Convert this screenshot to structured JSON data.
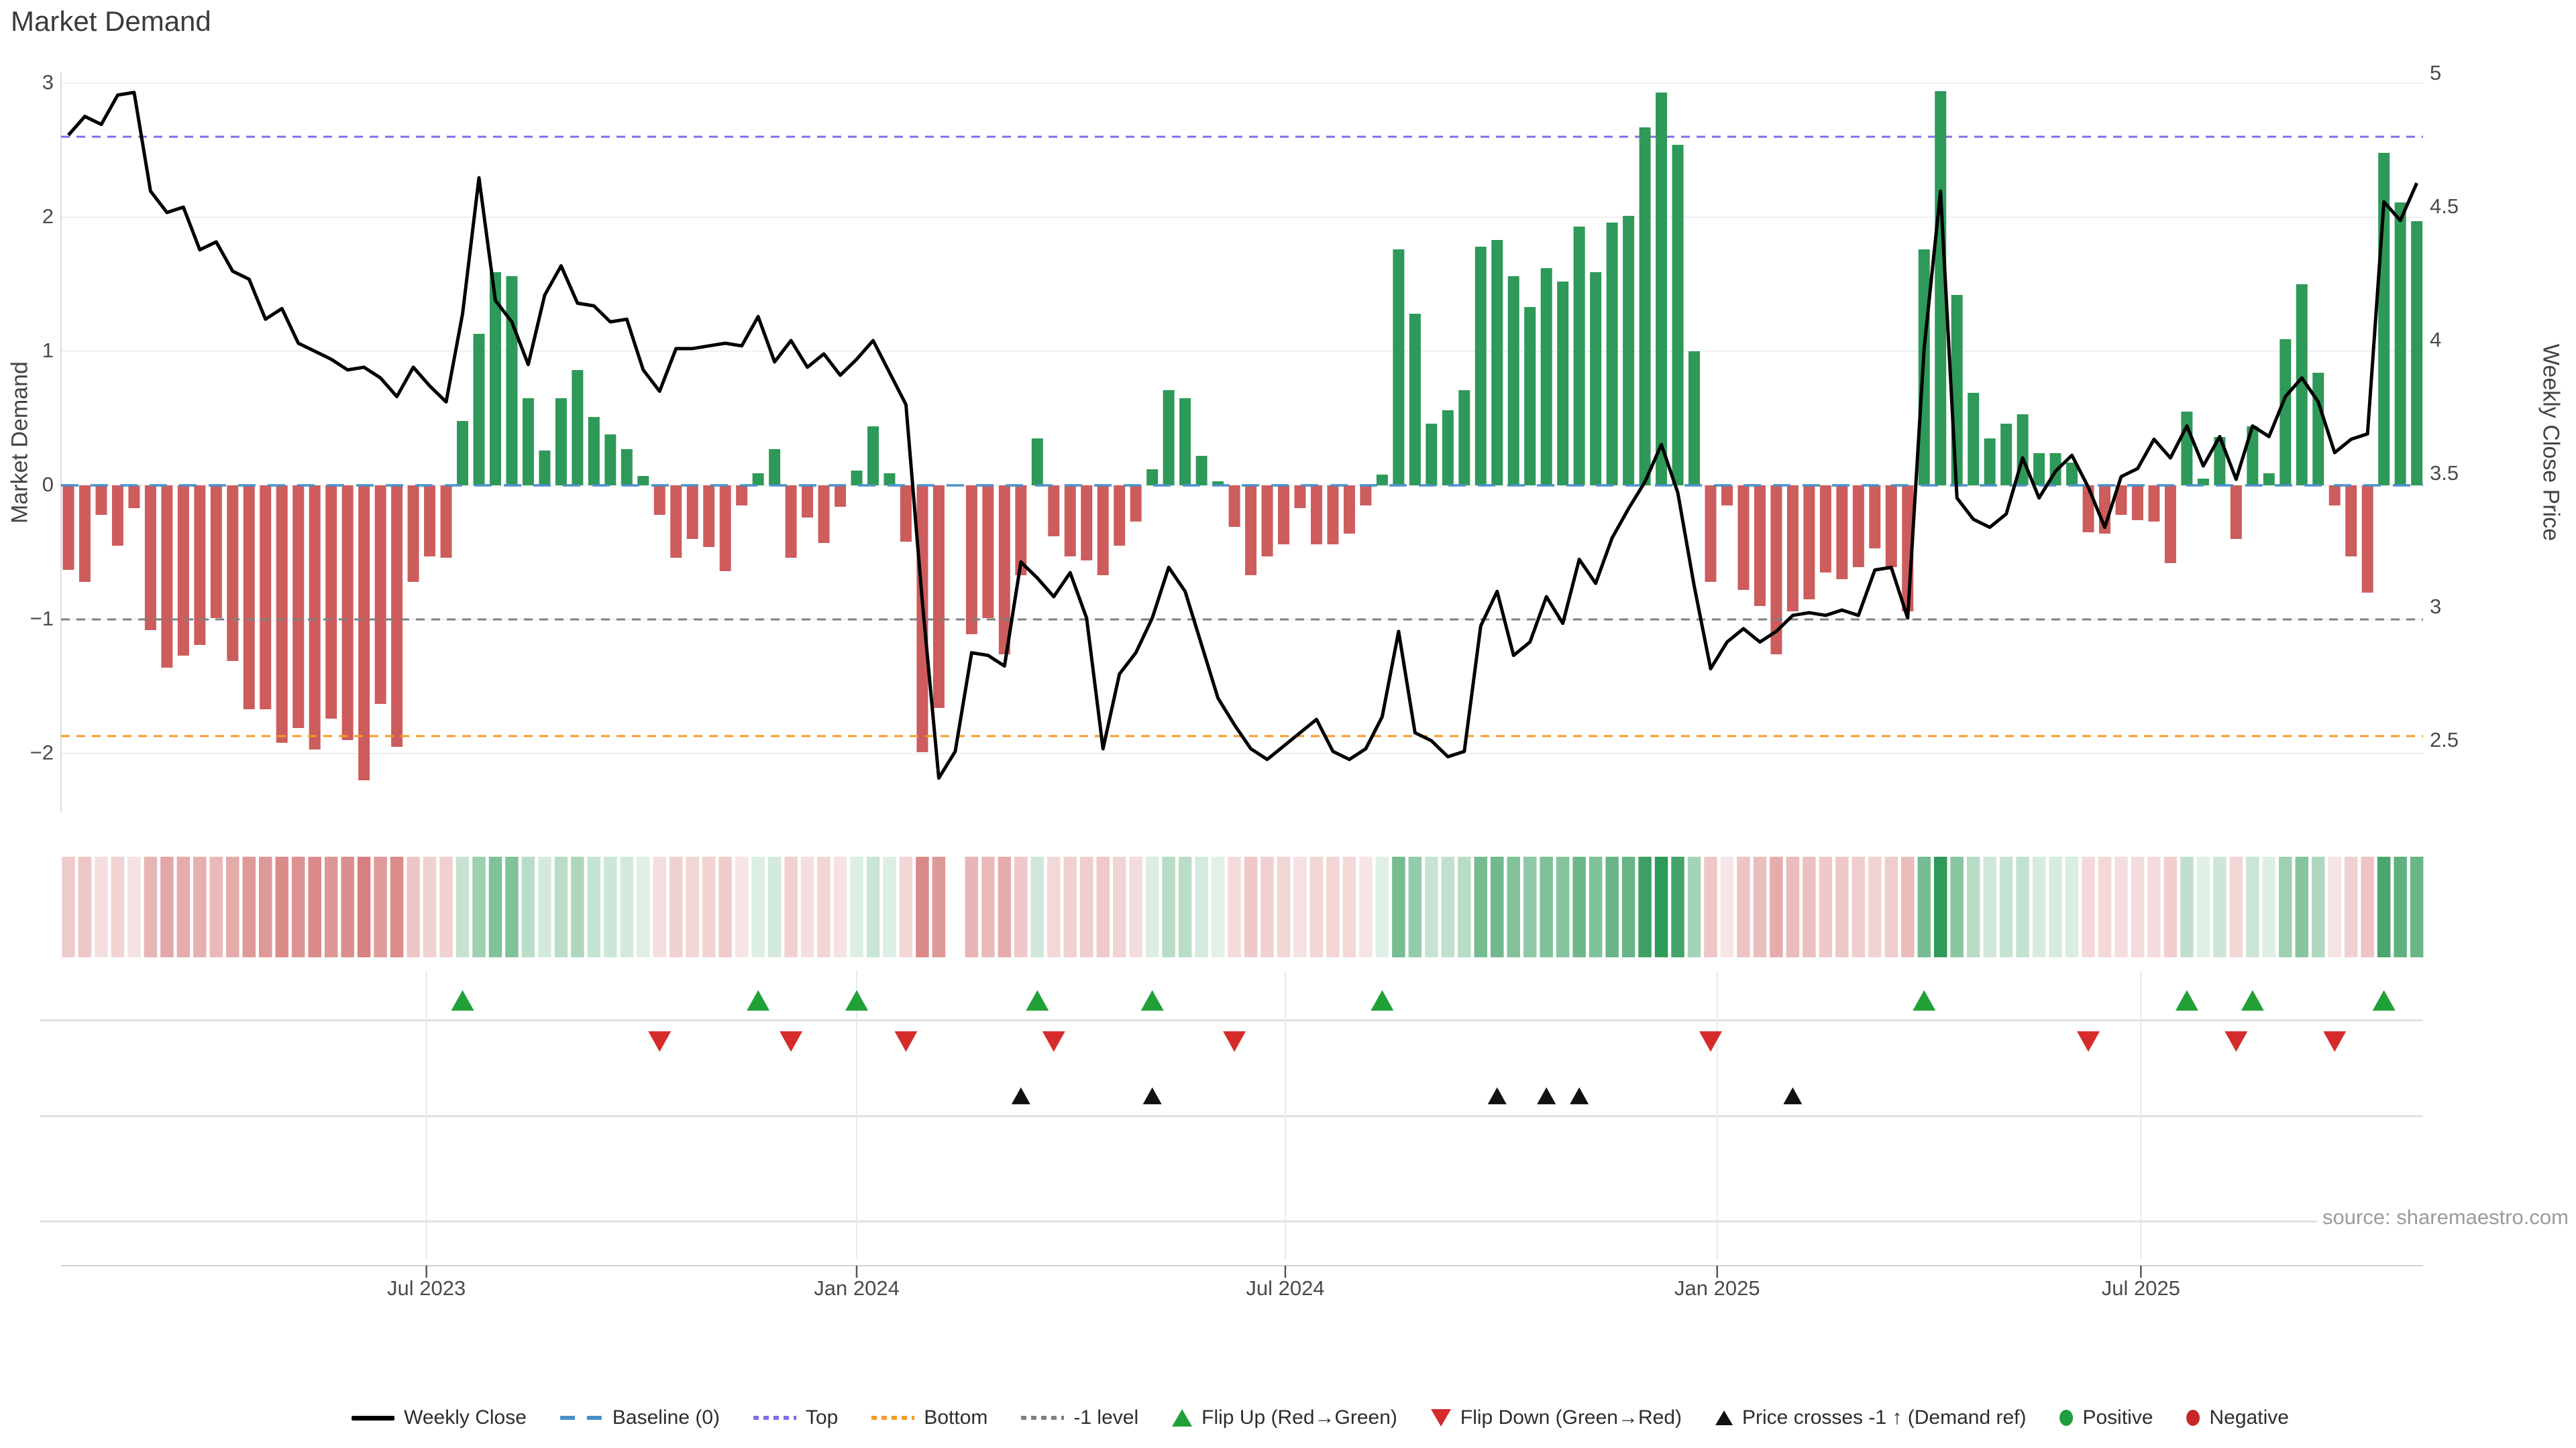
{
  "title": "Market Demand",
  "source": "source: sharemaestro.com",
  "legend": {
    "items": [
      {
        "label": "Weekly Close",
        "swatch": "sw-line",
        "icon": "black-line-icon"
      },
      {
        "label": "Baseline (0)",
        "swatch": "sw-dash-blue",
        "icon": "blue-dash-icon"
      },
      {
        "label": "Top",
        "swatch": "sw-dot-purple",
        "icon": "purple-dotted-icon"
      },
      {
        "label": "Bottom",
        "swatch": "sw-dot-orange",
        "icon": "orange-dotted-icon"
      },
      {
        "label": "-1 level",
        "swatch": "sw-dot-gray",
        "icon": "gray-dotted-icon"
      },
      {
        "label": "Flip Up (Red→Green)",
        "swatch": "sw-tri-up-green",
        "icon": "green-up-triangle-icon"
      },
      {
        "label": "Flip Down (Green→Red)",
        "swatch": "sw-tri-down-red",
        "icon": "red-down-triangle-icon"
      },
      {
        "label": "Price crosses -1 ↑ (Demand ref)",
        "swatch": "sw-tri-up-black",
        "icon": "black-up-triangle-icon"
      },
      {
        "label": "Positive",
        "swatch": "sw-dot-pos",
        "icon": "green-dot-icon"
      },
      {
        "label": "Negative",
        "swatch": "sw-dot-neg",
        "icon": "red-dot-icon"
      }
    ]
  },
  "chart_data": {
    "type": "bar+line",
    "title": "Market Demand",
    "subtitle": "",
    "grid": "horizontal-only",
    "legend_position": "bottom-center",
    "x_axis": {
      "unit": "weekly",
      "tick_labels": [
        "Jul 2023",
        "Jan 2024",
        "Jul 2024",
        "Jan 2025",
        "Jul 2025"
      ],
      "tick_week_index": [
        21.8,
        48.0,
        74.1,
        100.4,
        126.2
      ]
    },
    "left_axis": {
      "label": "Market Demand",
      "tick_labels": [
        "3",
        "2",
        "1",
        "0",
        "−1",
        "−2"
      ],
      "tick_values": [
        3,
        2,
        1,
        0,
        -1,
        -2
      ],
      "range": [
        -2.45,
        3.07
      ]
    },
    "right_axis": {
      "label": "Weekly Close Price",
      "tick_labels": [
        "5",
        "4.5",
        "4",
        "3.5",
        "3",
        "2.5"
      ],
      "tick_values": [
        5,
        4.5,
        4,
        3.5,
        3,
        2.5
      ],
      "range": [
        2.24,
        5.0
      ]
    },
    "reference_lines": {
      "baseline": 0,
      "top": 2.6,
      "bottom": -1.87,
      "minus1_level": -1
    },
    "series": [
      {
        "name": "Market Demand",
        "type": "bar",
        "axis": "left",
        "values": [
          -0.63,
          -0.72,
          -0.22,
          -0.45,
          -0.17,
          -1.08,
          -1.36,
          -1.27,
          -1.19,
          -0.99,
          -1.31,
          -1.67,
          -1.67,
          -1.92,
          -1.81,
          -1.97,
          -1.74,
          -1.9,
          -2.2,
          -1.63,
          -1.95,
          -0.72,
          -0.53,
          -0.54,
          0.48,
          1.13,
          1.59,
          1.56,
          0.65,
          0.26,
          0.65,
          0.86,
          0.51,
          0.38,
          0.27,
          0.07,
          -0.22,
          -0.54,
          -0.4,
          -0.46,
          -0.64,
          -0.15,
          0.09,
          0.27,
          -0.54,
          -0.24,
          -0.43,
          -0.16,
          0.11,
          0.44,
          0.09,
          -0.42,
          -1.99,
          -1.66,
          null,
          -1.11,
          -0.99,
          -1.26,
          -0.67,
          0.35,
          -0.38,
          -0.53,
          -0.56,
          -0.67,
          -0.45,
          -0.27,
          0.12,
          0.71,
          0.65,
          0.22,
          0.03,
          -0.31,
          -0.67,
          -0.53,
          -0.44,
          -0.17,
          -0.44,
          -0.44,
          -0.36,
          -0.15,
          0.08,
          1.76,
          1.28,
          0.46,
          0.56,
          0.71,
          1.78,
          1.83,
          1.56,
          1.33,
          1.62,
          1.52,
          1.93,
          1.59,
          1.96,
          2.01,
          2.67,
          2.93,
          2.54,
          1.0,
          -0.72,
          -0.15,
          -0.78,
          -0.9,
          -1.26,
          -0.94,
          -0.85,
          -0.65,
          -0.7,
          -0.61,
          -0.47,
          -0.61,
          -0.94,
          1.76,
          2.94,
          1.42,
          0.69,
          0.35,
          0.46,
          0.53,
          0.24,
          0.24,
          0.17,
          -0.35,
          -0.36,
          -0.22,
          -0.26,
          -0.27,
          -0.58,
          0.55,
          0.05,
          0.36,
          -0.4,
          0.44,
          0.09,
          1.09,
          1.5,
          0.84,
          -0.15,
          -0.53,
          -0.8,
          2.48,
          2.11,
          1.97
        ]
      },
      {
        "name": "Weekly Close",
        "type": "line",
        "axis": "right",
        "values": [
          4.77,
          4.84,
          4.81,
          4.92,
          4.93,
          4.56,
          4.48,
          4.5,
          4.34,
          4.37,
          4.26,
          4.23,
          4.08,
          4.12,
          3.99,
          3.96,
          3.93,
          3.89,
          3.9,
          3.86,
          3.79,
          3.9,
          3.83,
          3.77,
          4.1,
          4.61,
          4.15,
          4.07,
          3.91,
          4.17,
          4.28,
          4.14,
          4.13,
          4.07,
          4.08,
          3.89,
          3.81,
          3.97,
          3.97,
          3.98,
          3.99,
          3.98,
          4.09,
          3.92,
          4.0,
          3.9,
          3.95,
          3.87,
          3.93,
          4.0,
          3.88,
          3.76,
          3.02,
          2.36,
          2.46,
          2.83,
          2.82,
          2.78,
          3.17,
          3.11,
          3.04,
          3.13,
          2.96,
          2.47,
          2.75,
          2.83,
          2.96,
          3.15,
          3.06,
          2.86,
          2.66,
          2.56,
          2.47,
          2.43,
          2.48,
          2.53,
          2.58,
          2.46,
          2.43,
          2.47,
          2.59,
          2.91,
          2.53,
          2.5,
          2.44,
          2.46,
          2.93,
          3.06,
          2.82,
          2.87,
          3.04,
          2.94,
          3.18,
          3.09,
          3.26,
          3.37,
          3.47,
          3.61,
          3.43,
          3.08,
          2.77,
          2.87,
          2.92,
          2.87,
          2.91,
          2.97,
          2.98,
          2.97,
          2.99,
          2.97,
          3.14,
          3.15,
          2.96,
          3.97,
          4.56,
          3.41,
          3.33,
          3.3,
          3.35,
          3.56,
          3.41,
          3.51,
          3.57,
          3.45,
          3.3,
          3.49,
          3.52,
          3.63,
          3.56,
          3.68,
          3.53,
          3.64,
          3.48,
          3.68,
          3.64,
          3.79,
          3.86,
          3.77,
          3.58,
          3.63,
          3.65,
          4.52,
          4.45,
          4.59
        ]
      }
    ],
    "heatmap_strip": "sign and intensity of Market Demand bars (red negative, green positive, blank where data missing)",
    "markers": {
      "flip_up_weeks": [
        24,
        42,
        48,
        59,
        66,
        80,
        113,
        129,
        133,
        141
      ],
      "flip_down_weeks": [
        36,
        44,
        51,
        60,
        71,
        100,
        123,
        132,
        138
      ],
      "price_cross_minus1_up_weeks": [
        58,
        66,
        87,
        90,
        92,
        105
      ]
    },
    "colors": {
      "bar_positive": "#2e9958",
      "bar_negative": "#cd5c5c",
      "price_line": "#000000",
      "baseline": "#4a90c8",
      "top_line": "#7b6fe8",
      "bottom_line": "#f59a23",
      "minus1_line": "#7f7f7f",
      "flip_up_marker": "#21a038",
      "flip_down_marker": "#d62b2b",
      "price_cross_marker": "#111111",
      "positive_dot": "#1e9e3e",
      "negative_dot": "#c62828",
      "gridline": "#eef0f3"
    }
  }
}
